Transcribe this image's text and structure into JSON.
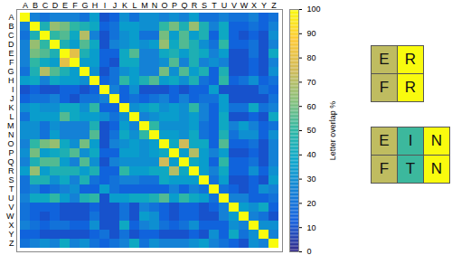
{
  "chart_data": {
    "type": "heatmap",
    "x": [
      "A",
      "B",
      "C",
      "D",
      "E",
      "F",
      "G",
      "H",
      "I",
      "J",
      "K",
      "L",
      "M",
      "N",
      "O",
      "P",
      "Q",
      "R",
      "S",
      "T",
      "U",
      "V",
      "W",
      "X",
      "Y",
      "Z"
    ],
    "y": [
      "A",
      "B",
      "C",
      "D",
      "E",
      "F",
      "G",
      "H",
      "I",
      "J",
      "K",
      "L",
      "M",
      "N",
      "O",
      "P",
      "Q",
      "R",
      "S",
      "T",
      "U",
      "V",
      "W",
      "X",
      "Y",
      "Z"
    ],
    "values": [
      [
        100,
        25,
        20,
        25,
        25,
        25,
        20,
        35,
        10,
        15,
        30,
        20,
        30,
        30,
        25,
        30,
        25,
        35,
        20,
        20,
        25,
        20,
        20,
        25,
        15,
        20
      ],
      [
        25,
        100,
        45,
        65,
        60,
        50,
        45,
        40,
        15,
        20,
        35,
        35,
        30,
        30,
        50,
        60,
        45,
        65,
        45,
        25,
        40,
        15,
        15,
        20,
        15,
        25
      ],
      [
        20,
        45,
        100,
        50,
        55,
        40,
        70,
        25,
        10,
        20,
        30,
        35,
        20,
        20,
        60,
        35,
        55,
        35,
        45,
        15,
        40,
        15,
        10,
        15,
        10,
        30
      ],
      [
        25,
        65,
        50,
        100,
        45,
        35,
        55,
        40,
        10,
        25,
        30,
        35,
        30,
        35,
        65,
        40,
        55,
        45,
        30,
        20,
        50,
        15,
        15,
        20,
        10,
        25
      ],
      [
        25,
        60,
        55,
        45,
        100,
        80,
        45,
        35,
        15,
        15,
        40,
        55,
        25,
        25,
        40,
        45,
        35,
        45,
        40,
        25,
        35,
        10,
        10,
        20,
        10,
        40
      ],
      [
        25,
        50,
        40,
        35,
        80,
        100,
        35,
        35,
        15,
        10,
        40,
        40,
        25,
        25,
        30,
        55,
        25,
        45,
        25,
        30,
        25,
        10,
        10,
        15,
        10,
        25
      ],
      [
        20,
        45,
        70,
        55,
        45,
        35,
        100,
        30,
        10,
        20,
        30,
        35,
        25,
        25,
        60,
        30,
        55,
        35,
        45,
        15,
        45,
        10,
        10,
        15,
        10,
        30
      ],
      [
        35,
        40,
        25,
        40,
        35,
        35,
        30,
        100,
        15,
        20,
        50,
        35,
        45,
        55,
        35,
        40,
        30,
        45,
        20,
        15,
        50,
        15,
        20,
        30,
        15,
        20
      ],
      [
        10,
        15,
        10,
        10,
        15,
        15,
        10,
        15,
        100,
        25,
        15,
        30,
        10,
        10,
        10,
        15,
        10,
        15,
        15,
        35,
        10,
        10,
        10,
        10,
        20,
        15
      ],
      [
        15,
        20,
        20,
        25,
        15,
        10,
        20,
        20,
        25,
        100,
        15,
        20,
        15,
        20,
        25,
        15,
        25,
        15,
        20,
        20,
        35,
        10,
        10,
        10,
        10,
        20
      ],
      [
        30,
        35,
        30,
        30,
        40,
        40,
        30,
        50,
        15,
        15,
        100,
        30,
        35,
        40,
        30,
        35,
        30,
        50,
        25,
        15,
        35,
        20,
        20,
        40,
        20,
        25
      ],
      [
        20,
        35,
        35,
        35,
        55,
        40,
        35,
        35,
        30,
        20,
        30,
        100,
        25,
        30,
        35,
        35,
        30,
        35,
        25,
        15,
        40,
        10,
        10,
        15,
        10,
        40
      ],
      [
        30,
        30,
        20,
        30,
        25,
        25,
        25,
        45,
        10,
        15,
        35,
        25,
        100,
        50,
        30,
        30,
        30,
        35,
        20,
        15,
        40,
        25,
        35,
        25,
        15,
        20
      ],
      [
        30,
        30,
        20,
        35,
        25,
        25,
        25,
        55,
        10,
        20,
        40,
        30,
        50,
        100,
        35,
        35,
        30,
        40,
        20,
        15,
        45,
        20,
        30,
        30,
        15,
        30
      ],
      [
        25,
        50,
        60,
        65,
        40,
        30,
        60,
        35,
        10,
        25,
        30,
        35,
        30,
        35,
        100,
        40,
        75,
        40,
        40,
        15,
        55,
        15,
        15,
        20,
        10,
        25
      ],
      [
        30,
        60,
        35,
        40,
        45,
        55,
        30,
        40,
        15,
        15,
        35,
        35,
        30,
        35,
        40,
        100,
        35,
        70,
        35,
        25,
        35,
        10,
        10,
        15,
        10,
        25
      ],
      [
        25,
        45,
        55,
        55,
        35,
        25,
        55,
        30,
        10,
        25,
        30,
        30,
        30,
        30,
        75,
        35,
        100,
        40,
        35,
        15,
        50,
        15,
        15,
        20,
        10,
        25
      ],
      [
        35,
        65,
        35,
        45,
        45,
        45,
        35,
        45,
        15,
        15,
        50,
        35,
        35,
        40,
        40,
        70,
        40,
        100,
        35,
        25,
        40,
        15,
        15,
        30,
        15,
        30
      ],
      [
        20,
        45,
        45,
        30,
        40,
        25,
        45,
        20,
        15,
        20,
        25,
        25,
        20,
        20,
        40,
        35,
        35,
        35,
        100,
        20,
        35,
        10,
        10,
        15,
        10,
        35
      ],
      [
        20,
        25,
        15,
        20,
        25,
        30,
        15,
        15,
        35,
        20,
        15,
        15,
        15,
        15,
        15,
        25,
        15,
        25,
        20,
        100,
        20,
        15,
        10,
        15,
        30,
        25
      ],
      [
        25,
        40,
        40,
        50,
        35,
        25,
        45,
        50,
        10,
        35,
        35,
        40,
        40,
        45,
        55,
        35,
        50,
        40,
        35,
        20,
        100,
        25,
        25,
        15,
        15,
        20
      ],
      [
        20,
        15,
        15,
        15,
        10,
        10,
        10,
        15,
        10,
        10,
        20,
        10,
        25,
        20,
        15,
        10,
        15,
        15,
        10,
        15,
        25,
        100,
        35,
        30,
        40,
        15
      ],
      [
        20,
        15,
        10,
        15,
        10,
        10,
        10,
        20,
        10,
        10,
        20,
        10,
        35,
        30,
        15,
        10,
        15,
        15,
        10,
        10,
        25,
        35,
        100,
        25,
        20,
        10
      ],
      [
        25,
        20,
        15,
        20,
        20,
        15,
        15,
        30,
        10,
        10,
        40,
        15,
        25,
        30,
        20,
        15,
        20,
        30,
        15,
        15,
        15,
        30,
        25,
        100,
        30,
        30
      ],
      [
        15,
        15,
        10,
        10,
        10,
        10,
        10,
        15,
        20,
        10,
        20,
        10,
        15,
        15,
        10,
        10,
        10,
        15,
        10,
        30,
        15,
        40,
        20,
        30,
        100,
        25
      ],
      [
        20,
        25,
        30,
        25,
        40,
        25,
        30,
        20,
        15,
        20,
        25,
        40,
        20,
        30,
        25,
        25,
        25,
        30,
        35,
        25,
        20,
        15,
        10,
        30,
        25,
        100
      ]
    ],
    "colorbar": {
      "label": "Letter overlap %",
      "lim": [
        0,
        100
      ],
      "ticks": [
        0,
        10,
        20,
        30,
        40,
        50,
        60,
        70,
        80,
        90,
        100
      ]
    },
    "examples": [
      {
        "cells": [
          [
            "E",
            "R"
          ],
          [
            "F",
            "R"
          ]
        ],
        "column_values": [
          72,
          100
        ]
      },
      {
        "cells": [
          [
            "E",
            "I",
            "N"
          ],
          [
            "F",
            "T",
            "N"
          ]
        ],
        "column_values": [
          72,
          52,
          100
        ]
      }
    ]
  }
}
